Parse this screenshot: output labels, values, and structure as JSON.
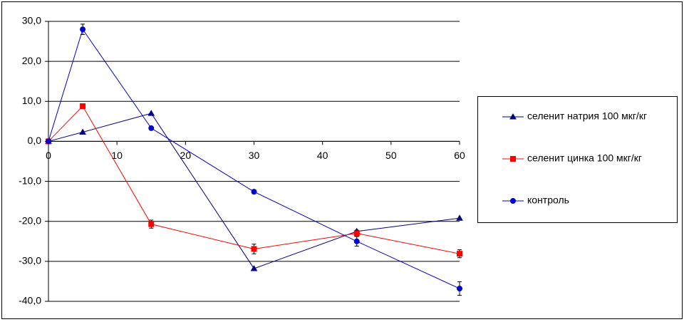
{
  "chart_data": {
    "type": "line",
    "x": [
      0,
      5,
      15,
      30,
      45,
      60
    ],
    "series": [
      {
        "name": "селенит натрия 100 мкг/кг",
        "color": "#000080",
        "marker": "triangle",
        "values": [
          0,
          2.3,
          7.0,
          -31.8,
          -22.5,
          -19.2
        ]
      },
      {
        "name": "селенит цинка 100 мкг/кг",
        "color": "#ff0000",
        "marker": "square",
        "values": [
          0,
          8.8,
          -20.7,
          -26.9,
          -23.0,
          -28.1
        ],
        "errors": [
          0,
          0.3,
          1.0,
          1.2,
          0.8,
          1.0
        ]
      },
      {
        "name": "контроль",
        "color": "#0000cc",
        "marker": "circle",
        "values": [
          0,
          28.0,
          3.3,
          -12.6,
          -25.0,
          -36.8
        ],
        "errors": [
          0,
          1.3,
          0.3,
          0.5,
          1.2,
          1.7
        ]
      }
    ],
    "xlim": [
      0,
      60
    ],
    "xticks": [
      0,
      10,
      20,
      30,
      40,
      50,
      60
    ],
    "ylim": [
      -40,
      30
    ],
    "yticks": [
      {
        "value": -40,
        "label": "-40,0"
      },
      {
        "value": -30,
        "label": "-30,0"
      },
      {
        "value": -20,
        "label": "-20,0"
      },
      {
        "value": -10,
        "label": "-10,0"
      },
      {
        "value": 0,
        "label": "0,0"
      },
      {
        "value": 10,
        "label": "10,0"
      },
      {
        "value": 20,
        "label": "20,0"
      },
      {
        "value": 30,
        "label": "30,0"
      }
    ],
    "grid": true,
    "legend": "right"
  }
}
